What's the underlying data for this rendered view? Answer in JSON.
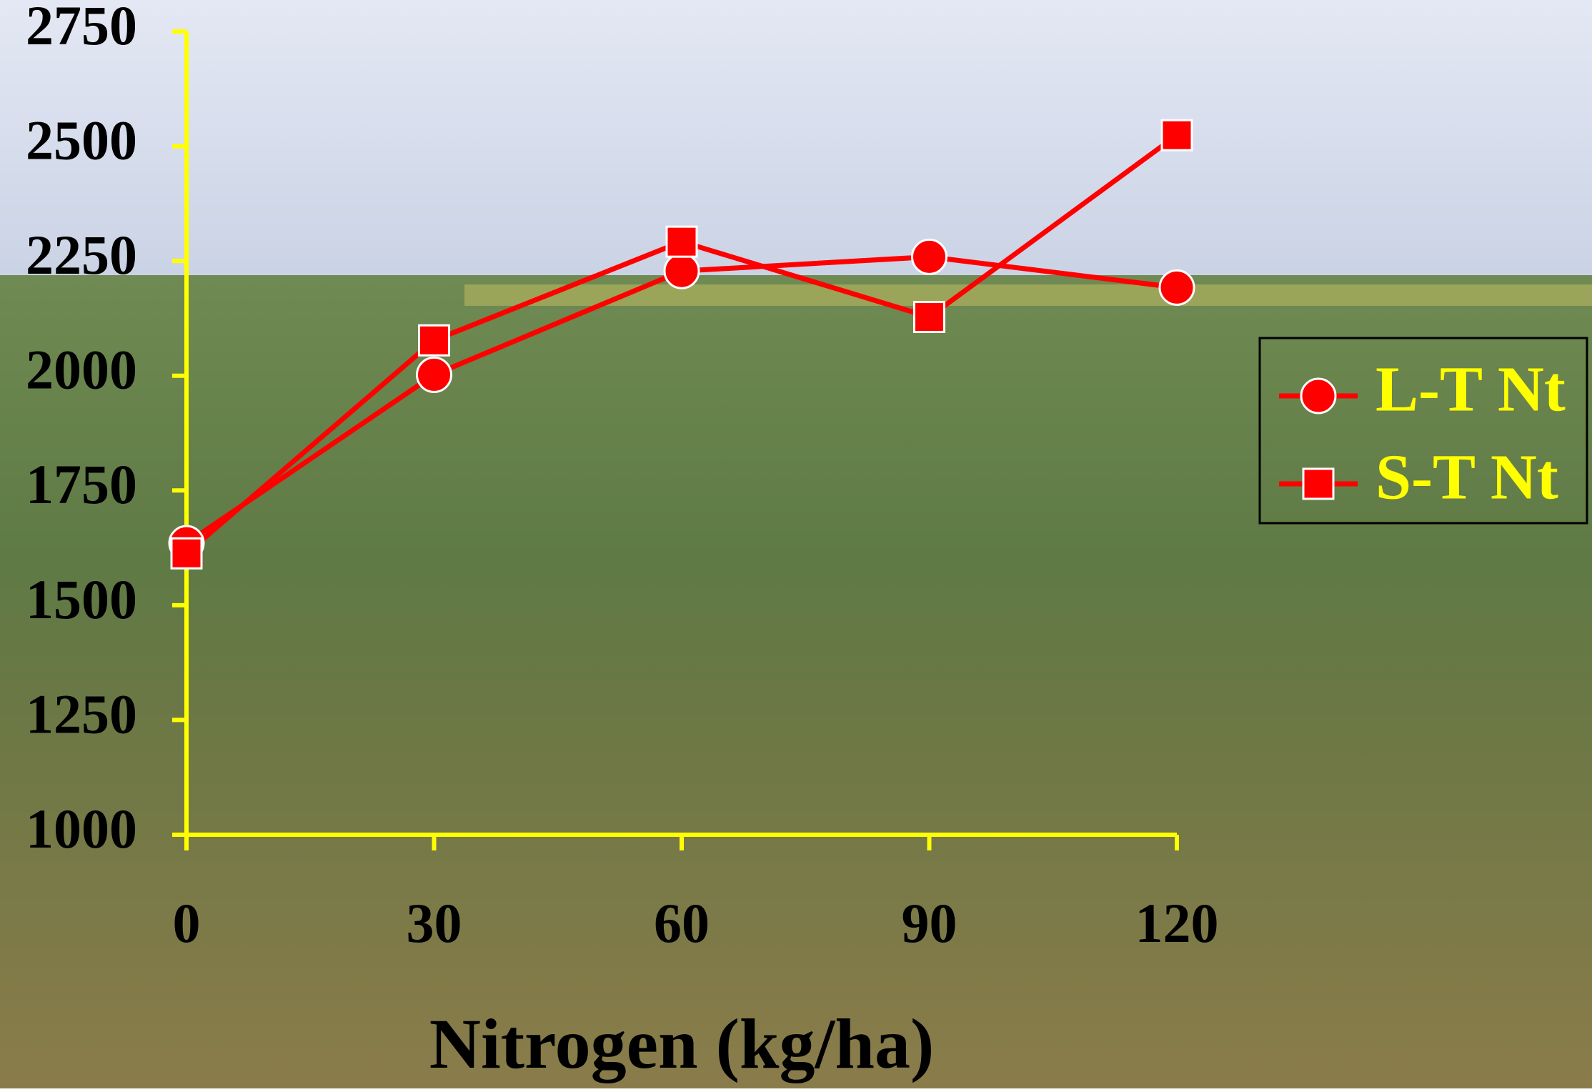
{
  "chart_data": {
    "type": "line",
    "x_label": "Nitrogen (kg/ha)",
    "x": [
      0,
      30,
      60,
      90,
      120
    ],
    "xlim": [
      0,
      120
    ],
    "xticks": [
      0,
      30,
      60,
      90,
      120
    ],
    "ylim": [
      1000,
      2750
    ],
    "yticks": [
      1000,
      1250,
      1500,
      1750,
      2000,
      2250,
      2500,
      2750
    ],
    "axis_color": "#ffff00",
    "legend": "right",
    "series": [
      {
        "name": "L-T Nt",
        "color": "#ff0000",
        "marker": "circle",
        "values": [
          1635,
          2002,
          2228,
          2259,
          2192
        ]
      },
      {
        "name": "S-T Nt",
        "color": "#ff0000",
        "marker": "square",
        "values": [
          1613,
          2077,
          2292,
          2128,
          2524
        ]
      }
    ]
  }
}
